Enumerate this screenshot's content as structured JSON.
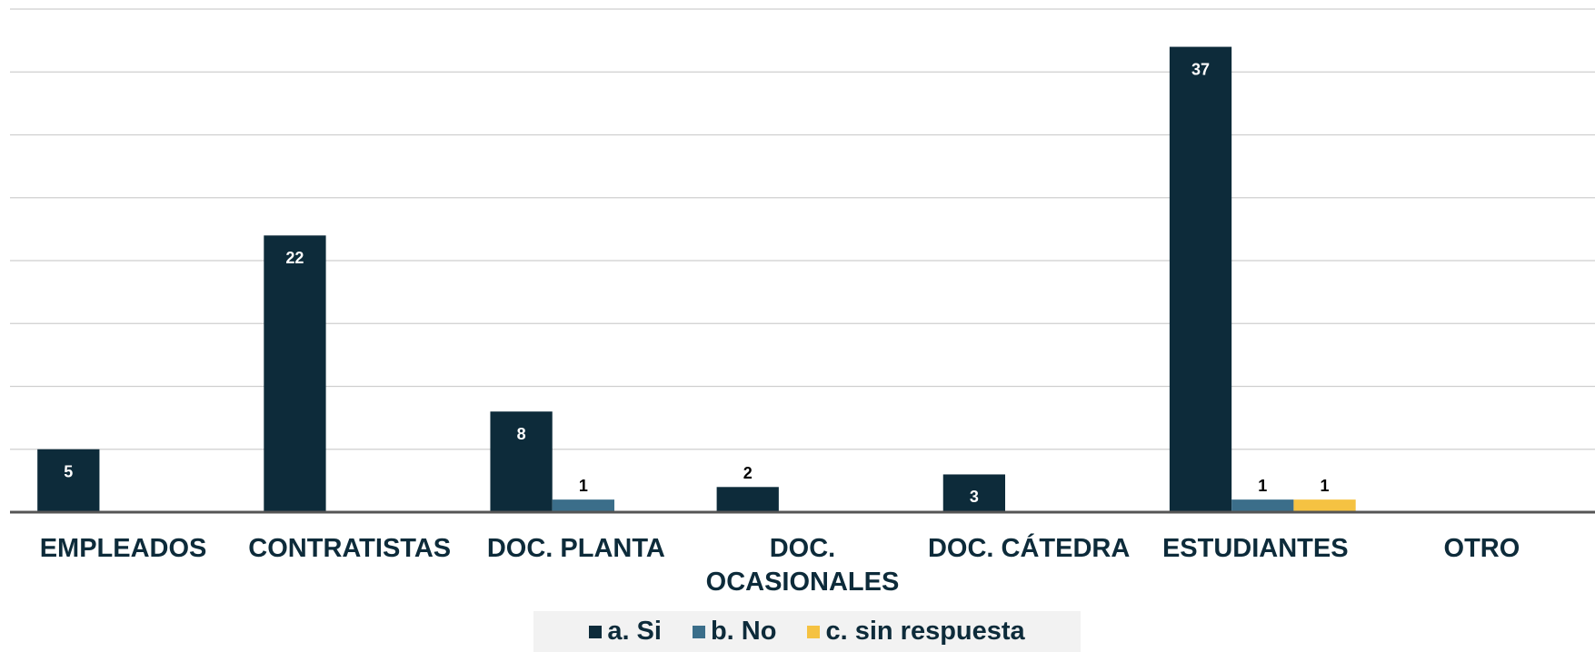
{
  "chart_data": {
    "type": "bar",
    "categories": [
      "EMPLEADOS",
      "CONTRATISTAS",
      "DOC. PLANTA",
      "DOC. OCASIONALES",
      "DOC. CÁTEDRA",
      "ESTUDIANTES",
      "OTRO"
    ],
    "series": [
      {
        "name": "a. Si",
        "color": "#0d2b3a",
        "values": [
          5,
          22,
          8,
          2,
          3,
          37,
          null
        ]
      },
      {
        "name": "b. No",
        "color": "#3b6e8a",
        "values": [
          null,
          null,
          1,
          null,
          null,
          1,
          null
        ]
      },
      {
        "name": "c. sin respuesta",
        "color": "#f5c242",
        "values": [
          null,
          null,
          null,
          null,
          null,
          1,
          null
        ]
      }
    ],
    "ylim": [
      0,
      40
    ],
    "yticks": [
      0,
      5,
      10,
      15,
      20,
      25,
      30,
      35,
      40
    ],
    "grid": true,
    "legend": "bottom"
  }
}
